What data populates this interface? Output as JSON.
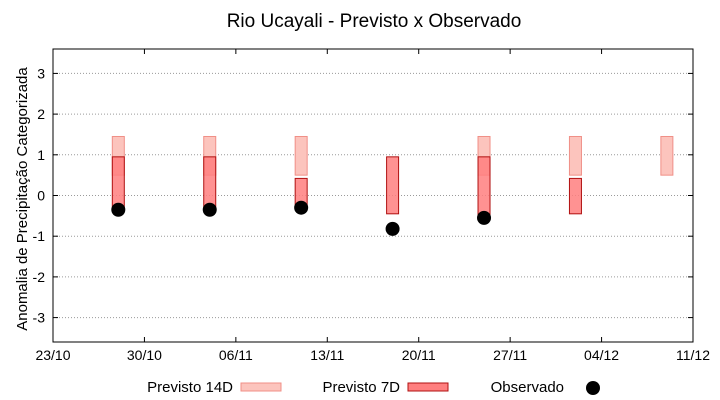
{
  "chart_data": {
    "type": "errorbar-boxes",
    "title": "Rio Ucayali - Previsto x Observado",
    "xlabel": "",
    "ylabel": "Anomalia de Precipitação Categorizada",
    "xlim": [
      "2016-10-23",
      "2016-12-11"
    ],
    "ylim": [
      -3.6,
      3.6
    ],
    "x_ticks": [
      "23/10",
      "30/10",
      "06/11",
      "13/11",
      "20/11",
      "27/11",
      "04/12",
      "11/12"
    ],
    "y_ticks": [
      -3,
      -2,
      -1,
      0,
      1,
      2,
      3
    ],
    "grid": "horizontal dotted",
    "legend_position": "bottom",
    "series": [
      {
        "name": "Previsto 14D",
        "kind": "box",
        "color_fill": "#fcc4bd",
        "color_edge": "#f08f87",
        "points": [
          {
            "x": "2016-10-28",
            "low": 0.5,
            "high": 1.45
          },
          {
            "x": "2016-11-04",
            "low": 0.5,
            "high": 1.45
          },
          {
            "x": "2016-11-11",
            "low": 0.5,
            "high": 1.45
          },
          {
            "x": "2016-11-25",
            "low": 0.5,
            "high": 1.45
          },
          {
            "x": "2016-12-02",
            "low": 0.5,
            "high": 1.45
          },
          {
            "x": "2016-12-09",
            "low": 0.5,
            "high": 1.45
          }
        ]
      },
      {
        "name": "Previsto 7D",
        "kind": "box",
        "color_fill": "#ff7f7f",
        "color_edge": "#b01010",
        "points": [
          {
            "x": "2016-10-28",
            "low": -0.35,
            "high": 0.95
          },
          {
            "x": "2016-11-04",
            "low": -0.35,
            "high": 0.95
          },
          {
            "x": "2016-11-11",
            "low": -0.3,
            "high": 0.42
          },
          {
            "x": "2016-11-18",
            "low": -0.45,
            "high": 0.95
          },
          {
            "x": "2016-11-25",
            "low": -0.55,
            "high": 0.95
          },
          {
            "x": "2016-12-02",
            "low": -0.45,
            "high": 0.42
          }
        ]
      },
      {
        "name": "Observado",
        "kind": "point",
        "color": "#000000",
        "points": [
          {
            "x": "2016-10-28",
            "y": -0.35
          },
          {
            "x": "2016-11-04",
            "y": -0.35
          },
          {
            "x": "2016-11-11",
            "y": -0.3
          },
          {
            "x": "2016-11-18",
            "y": -0.82
          },
          {
            "x": "2016-11-25",
            "y": -0.55
          }
        ]
      }
    ]
  }
}
